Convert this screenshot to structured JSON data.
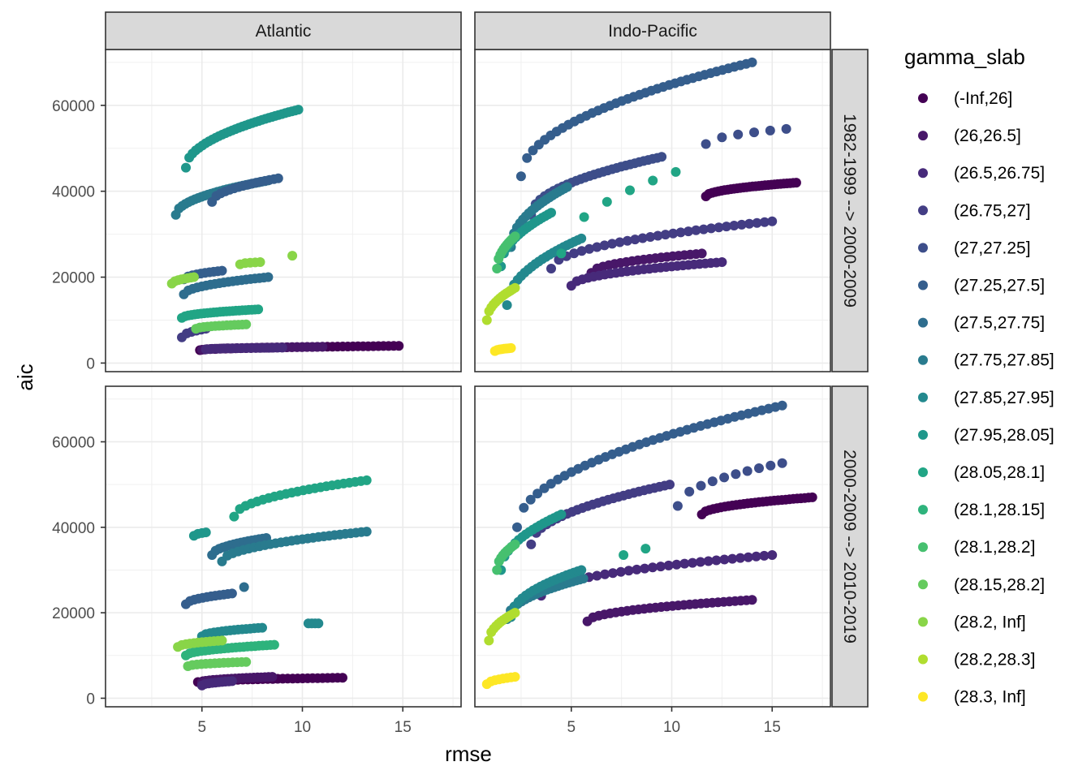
{
  "chart_data": {
    "type": "scatter",
    "xlabel": "rmse",
    "ylabel": "aic",
    "xlim": [
      0.2,
      17.9
    ],
    "ylim": [
      -2000,
      73000
    ],
    "x_ticks": [
      5,
      10,
      15
    ],
    "y_ticks": [
      0,
      20000,
      40000,
      60000
    ],
    "y_tick_labels": [
      "0",
      "20000",
      "40000",
      "60000"
    ],
    "grid": true,
    "facet_columns": [
      "Atlantic",
      "Indo-Pacific"
    ],
    "facet_rows": [
      "1982-1999 --> 2000-2009",
      "2000-2009 --> 2010-2019"
    ],
    "legend": {
      "title": "gamma_slab",
      "placement": "right",
      "entries": [
        {
          "label": "(-Inf,26]",
          "color": "#440154"
        },
        {
          "label": "(26,26.5]",
          "color": "#481769"
        },
        {
          "label": "(26.5,26.75]",
          "color": "#472A7A"
        },
        {
          "label": "(26.75,27]",
          "color": "#433D84"
        },
        {
          "label": "(27,27.25]",
          "color": "#3D4E8A"
        },
        {
          "label": "(27.25,27.5]",
          "color": "#355E8D"
        },
        {
          "label": "(27.5,27.75]",
          "color": "#2E6D8E"
        },
        {
          "label": "(27.75,27.85]",
          "color": "#297B8E"
        },
        {
          "label": "(27.85,27.95]",
          "color": "#23898E"
        },
        {
          "label": "(27.95,28.05]",
          "color": "#1F978B"
        },
        {
          "label": "(28.05,28.1]",
          "color": "#21A585"
        },
        {
          "label": "(28.1,28.15]",
          "color": "#2EB37C"
        },
        {
          "label": "(28.1,28.2]",
          "color": "#46C06F"
        },
        {
          "label": "(28.15,28.2]",
          "color": "#65CB5E"
        },
        {
          "label": "(28.2, Inf]",
          "color": "#89D548"
        },
        {
          "label": "(28.2,28.3]",
          "color": "#B0DD2F"
        },
        {
          "label": "(28.3, Inf]",
          "color": "#FDE725"
        }
      ]
    },
    "series": [
      {
        "panel": [
          0,
          0
        ],
        "c": 0,
        "x": [
          4.9,
          14.8
        ],
        "y": [
          3000,
          4000
        ],
        "n": 40
      },
      {
        "panel": [
          0,
          0
        ],
        "c": 1,
        "x": [
          5.0,
          11.0
        ],
        "y": [
          3100,
          3800
        ],
        "n": 25
      },
      {
        "panel": [
          0,
          0
        ],
        "c": 2,
        "x": [
          5.2,
          9.0
        ],
        "y": [
          3200,
          3600
        ],
        "n": 18
      },
      {
        "panel": [
          0,
          0
        ],
        "c": 3,
        "x": [
          4.0,
          5.2
        ],
        "y": [
          6000,
          8000
        ],
        "n": 6
      },
      {
        "panel": [
          0,
          0
        ],
        "c": 5,
        "x": [
          4.1,
          6.0
        ],
        "y": [
          19500,
          21500
        ],
        "n": 10
      },
      {
        "panel": [
          0,
          0
        ],
        "c": 6,
        "x": [
          4.1,
          8.3
        ],
        "y": [
          16000,
          20000
        ],
        "n": 20
      },
      {
        "panel": [
          0,
          0
        ],
        "c": 7,
        "x": [
          3.7,
          8.3
        ],
        "y": [
          34500,
          42500
        ],
        "n": 30
      },
      {
        "panel": [
          0,
          0
        ],
        "c": 5,
        "x": [
          5.5,
          8.8
        ],
        "y": [
          37500,
          43000
        ],
        "n": 16
      },
      {
        "panel": [
          0,
          0
        ],
        "c": 9,
        "x": [
          4.2,
          9.8
        ],
        "y": [
          45500,
          59000
        ],
        "n": 35
      },
      {
        "panel": [
          0,
          0
        ],
        "c": 10,
        "x": [
          4.0,
          7.8
        ],
        "y": [
          10500,
          12500
        ],
        "n": 25
      },
      {
        "panel": [
          0,
          0
        ],
        "c": 13,
        "x": [
          4.7,
          7.2
        ],
        "y": [
          8000,
          9000
        ],
        "n": 14
      },
      {
        "panel": [
          0,
          0
        ],
        "c": 14,
        "x": [
          3.5,
          4.6
        ],
        "y": [
          18500,
          20000
        ],
        "n": 8
      },
      {
        "panel": [
          0,
          0
        ],
        "c": 14,
        "x": [
          6.9,
          7.9
        ],
        "y": [
          23000,
          23500
        ],
        "n": 5
      },
      {
        "panel": [
          0,
          0
        ],
        "c": 14,
        "x": [
          9.5,
          9.5
        ],
        "y": [
          25000,
          25000
        ],
        "n": 1
      },
      {
        "panel": [
          0,
          1
        ],
        "c": 0,
        "x": [
          11.7,
          16.2
        ],
        "y": [
          38800,
          42000
        ],
        "n": 30
      },
      {
        "panel": [
          0,
          1
        ],
        "c": 1,
        "x": [
          6.0,
          11.5
        ],
        "y": [
          21000,
          25500
        ],
        "n": 20
      },
      {
        "panel": [
          0,
          1
        ],
        "c": 2,
        "x": [
          5.0,
          12.5
        ],
        "y": [
          18000,
          23500
        ],
        "n": 28
      },
      {
        "panel": [
          0,
          1
        ],
        "c": 3,
        "x": [
          4.0,
          15.0
        ],
        "y": [
          22000,
          33000
        ],
        "n": 30
      },
      {
        "panel": [
          0,
          1
        ],
        "c": 4,
        "x": [
          3.0,
          9.5
        ],
        "y": [
          34500,
          48000
        ],
        "n": 30
      },
      {
        "panel": [
          0,
          1
        ],
        "c": 4,
        "x": [
          11.7,
          15.7
        ],
        "y": [
          51000,
          54500
        ],
        "n": 6
      },
      {
        "panel": [
          0,
          1
        ],
        "c": 5,
        "x": [
          2.5,
          14.0
        ],
        "y": [
          43500,
          70000
        ],
        "n": 40
      },
      {
        "panel": [
          0,
          1
        ],
        "c": 7,
        "x": [
          2.0,
          4.8
        ],
        "y": [
          27000,
          41000
        ],
        "n": 20
      },
      {
        "panel": [
          0,
          1
        ],
        "c": 8,
        "x": [
          1.8,
          5.5
        ],
        "y": [
          13500,
          29000
        ],
        "n": 22
      },
      {
        "panel": [
          0,
          1
        ],
        "c": 9,
        "x": [
          1.5,
          4.0
        ],
        "y": [
          22500,
          35000
        ],
        "n": 18
      },
      {
        "panel": [
          0,
          1
        ],
        "c": 10,
        "x": [
          4.5,
          10.2
        ],
        "y": [
          25500,
          44500
        ],
        "n": 6
      },
      {
        "panel": [
          0,
          1
        ],
        "c": 12,
        "x": [
          1.3,
          2.2
        ],
        "y": [
          22000,
          29500
        ],
        "n": 12
      },
      {
        "panel": [
          0,
          1
        ],
        "c": 15,
        "x": [
          0.8,
          2.2
        ],
        "y": [
          10000,
          17500
        ],
        "n": 14
      },
      {
        "panel": [
          0,
          1
        ],
        "c": 16,
        "x": [
          1.2,
          2.0
        ],
        "y": [
          2800,
          3500
        ],
        "n": 8
      },
      {
        "panel": [
          1,
          0
        ],
        "c": 0,
        "x": [
          4.8,
          12.0
        ],
        "y": [
          3800,
          4800
        ],
        "n": 30
      },
      {
        "panel": [
          1,
          0
        ],
        "c": 1,
        "x": [
          5.0,
          8.5
        ],
        "y": [
          3800,
          5000
        ],
        "n": 20
      },
      {
        "panel": [
          1,
          0
        ],
        "c": 2,
        "x": [
          5.0,
          6.5
        ],
        "y": [
          3000,
          4000
        ],
        "n": 10
      },
      {
        "panel": [
          1,
          0
        ],
        "c": 5,
        "x": [
          4.2,
          6.5
        ],
        "y": [
          22000,
          24500
        ],
        "n": 12
      },
      {
        "panel": [
          1,
          0
        ],
        "c": 6,
        "x": [
          5.5,
          8.2
        ],
        "y": [
          33500,
          37500
        ],
        "n": 16
      },
      {
        "panel": [
          1,
          0
        ],
        "c": 6,
        "x": [
          7.1,
          7.1
        ],
        "y": [
          26000,
          26000
        ],
        "n": 1
      },
      {
        "panel": [
          1,
          0
        ],
        "c": 7,
        "x": [
          6.0,
          13.2
        ],
        "y": [
          32000,
          39000
        ],
        "n": 28
      },
      {
        "panel": [
          1,
          0
        ],
        "c": 8,
        "x": [
          5.0,
          8.0
        ],
        "y": [
          14500,
          16500
        ],
        "n": 16
      },
      {
        "panel": [
          1,
          0
        ],
        "c": 8,
        "x": [
          10.3,
          10.8
        ],
        "y": [
          17500,
          17500
        ],
        "n": 4
      },
      {
        "panel": [
          1,
          0
        ],
        "c": 9,
        "x": [
          4.6,
          5.2
        ],
        "y": [
          38000,
          38800
        ],
        "n": 4
      },
      {
        "panel": [
          1,
          0
        ],
        "c": 10,
        "x": [
          6.6,
          13.2
        ],
        "y": [
          42500,
          51000
        ],
        "n": 24
      },
      {
        "panel": [
          1,
          0
        ],
        "c": 11,
        "x": [
          4.2,
          8.6
        ],
        "y": [
          10000,
          12500
        ],
        "n": 24
      },
      {
        "panel": [
          1,
          0
        ],
        "c": 13,
        "x": [
          4.3,
          7.2
        ],
        "y": [
          7500,
          8500
        ],
        "n": 14
      },
      {
        "panel": [
          1,
          0
        ],
        "c": 14,
        "x": [
          3.8,
          6.0
        ],
        "y": [
          12000,
          13500
        ],
        "n": 12
      },
      {
        "panel": [
          1,
          1
        ],
        "c": 0,
        "x": [
          11.5,
          17.0
        ],
        "y": [
          43000,
          47000
        ],
        "n": 30
      },
      {
        "panel": [
          1,
          1
        ],
        "c": 1,
        "x": [
          5.8,
          14.0
        ],
        "y": [
          18000,
          23000
        ],
        "n": 30
      },
      {
        "panel": [
          1,
          1
        ],
        "c": 2,
        "x": [
          3.5,
          15.0
        ],
        "y": [
          24000,
          33500
        ],
        "n": 30
      },
      {
        "panel": [
          1,
          1
        ],
        "c": 3,
        "x": [
          3.0,
          9.9
        ],
        "y": [
          36000,
          50000
        ],
        "n": 28
      },
      {
        "panel": [
          1,
          1
        ],
        "c": 4,
        "x": [
          10.3,
          15.5
        ],
        "y": [
          45000,
          55000
        ],
        "n": 10
      },
      {
        "panel": [
          1,
          1
        ],
        "c": 5,
        "x": [
          2.3,
          15.5
        ],
        "y": [
          40000,
          68500
        ],
        "n": 40
      },
      {
        "panel": [
          1,
          1
        ],
        "c": 7,
        "x": [
          1.8,
          5.6
        ],
        "y": [
          18500,
          28000
        ],
        "n": 22
      },
      {
        "panel": [
          1,
          1
        ],
        "c": 8,
        "x": [
          2.0,
          5.5
        ],
        "y": [
          19000,
          30000
        ],
        "n": 20
      },
      {
        "panel": [
          1,
          1
        ],
        "c": 9,
        "x": [
          1.5,
          4.5
        ],
        "y": [
          30000,
          43000
        ],
        "n": 18
      },
      {
        "panel": [
          1,
          1
        ],
        "c": 10,
        "x": [
          7.6,
          8.7
        ],
        "y": [
          33500,
          35000
        ],
        "n": 2
      },
      {
        "panel": [
          1,
          1
        ],
        "c": 12,
        "x": [
          1.3,
          2.2
        ],
        "y": [
          30000,
          36000
        ],
        "n": 10
      },
      {
        "panel": [
          1,
          1
        ],
        "c": 15,
        "x": [
          0.9,
          2.2
        ],
        "y": [
          13500,
          20000
        ],
        "n": 12
      },
      {
        "panel": [
          1,
          1
        ],
        "c": 16,
        "x": [
          0.8,
          2.2
        ],
        "y": [
          3300,
          5000
        ],
        "n": 8
      }
    ]
  }
}
